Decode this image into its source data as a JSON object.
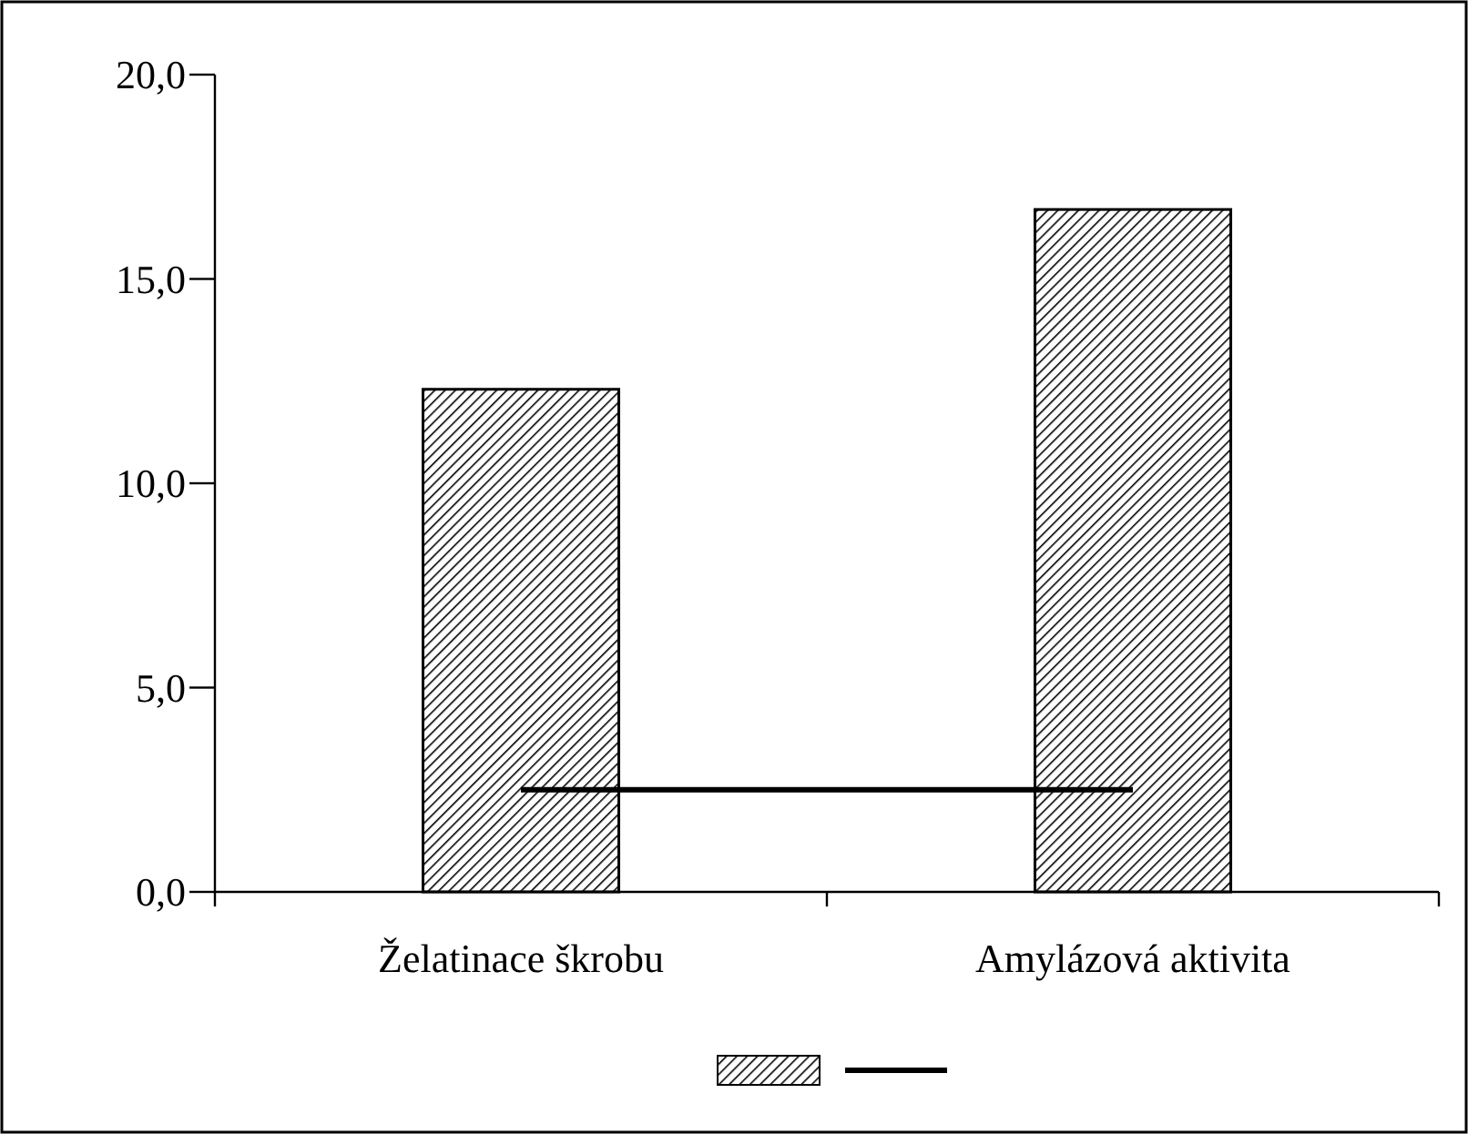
{
  "chart_data": {
    "type": "bar",
    "categories": [
      "Želatinace škrobu",
      "Amylázová aktivita"
    ],
    "series": [
      {
        "color": "#000000",
        "values": [
          12.3,
          16.7
        ]
      },
      {
        "type": "line",
        "color": "#000000",
        "values": [
          2.5,
          2.5
        ]
      }
    ],
    "ylim": [
      0,
      20
    ],
    "yticks": [
      {
        "value": 0,
        "label": "0,0"
      },
      {
        "value": 5,
        "label": "5,0"
      },
      {
        "value": 10,
        "label": "10,0"
      },
      {
        "value": 15,
        "label": "15,0"
      },
      {
        "value": 20,
        "label": "20,0"
      }
    ],
    "marker": "none"
  }
}
